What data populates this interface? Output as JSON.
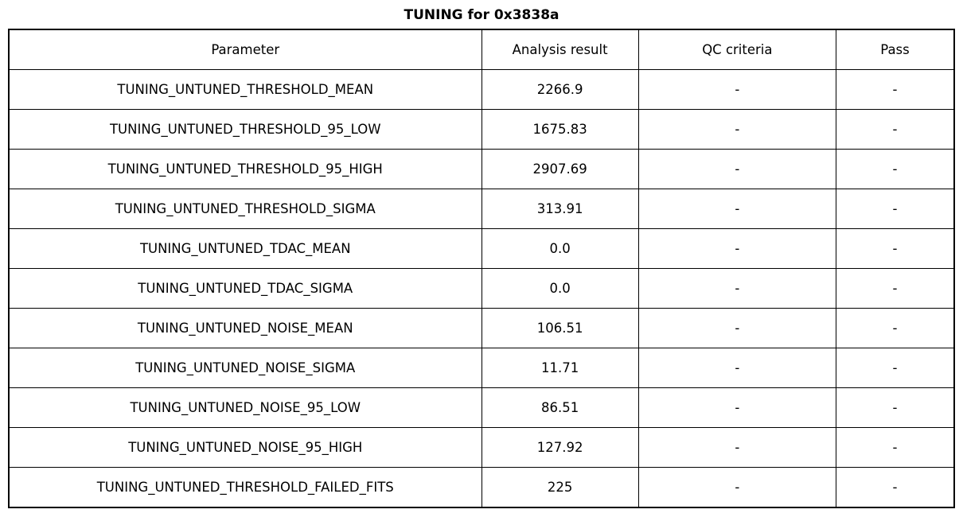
{
  "title": "TUNING for 0x3838a",
  "chart_data": {
    "type": "table",
    "title": "TUNING for 0x3838a",
    "columns": [
      "Parameter",
      "Analysis result",
      "QC criteria",
      "Pass"
    ],
    "rows": [
      [
        "TUNING_UNTUNED_THRESHOLD_MEAN",
        "2266.9",
        "-",
        "-"
      ],
      [
        "TUNING_UNTUNED_THRESHOLD_95_LOW",
        "1675.83",
        "-",
        "-"
      ],
      [
        "TUNING_UNTUNED_THRESHOLD_95_HIGH",
        "2907.69",
        "-",
        "-"
      ],
      [
        "TUNING_UNTUNED_THRESHOLD_SIGMA",
        "313.91",
        "-",
        "-"
      ],
      [
        "TUNING_UNTUNED_TDAC_MEAN",
        "0.0",
        "-",
        "-"
      ],
      [
        "TUNING_UNTUNED_TDAC_SIGMA",
        "0.0",
        "-",
        "-"
      ],
      [
        "TUNING_UNTUNED_NOISE_MEAN",
        "106.51",
        "-",
        "-"
      ],
      [
        "TUNING_UNTUNED_NOISE_SIGMA",
        "11.71",
        "-",
        "-"
      ],
      [
        "TUNING_UNTUNED_NOISE_95_LOW",
        "86.51",
        "-",
        "-"
      ],
      [
        "TUNING_UNTUNED_NOISE_95_HIGH",
        "127.92",
        "-",
        "-"
      ],
      [
        "TUNING_UNTUNED_THRESHOLD_FAILED_FITS",
        "225",
        "-",
        "-"
      ]
    ],
    "layout": {
      "grid": true,
      "text_color": "#000000",
      "border_color": "#000000",
      "background_color": "#ffffff"
    }
  }
}
